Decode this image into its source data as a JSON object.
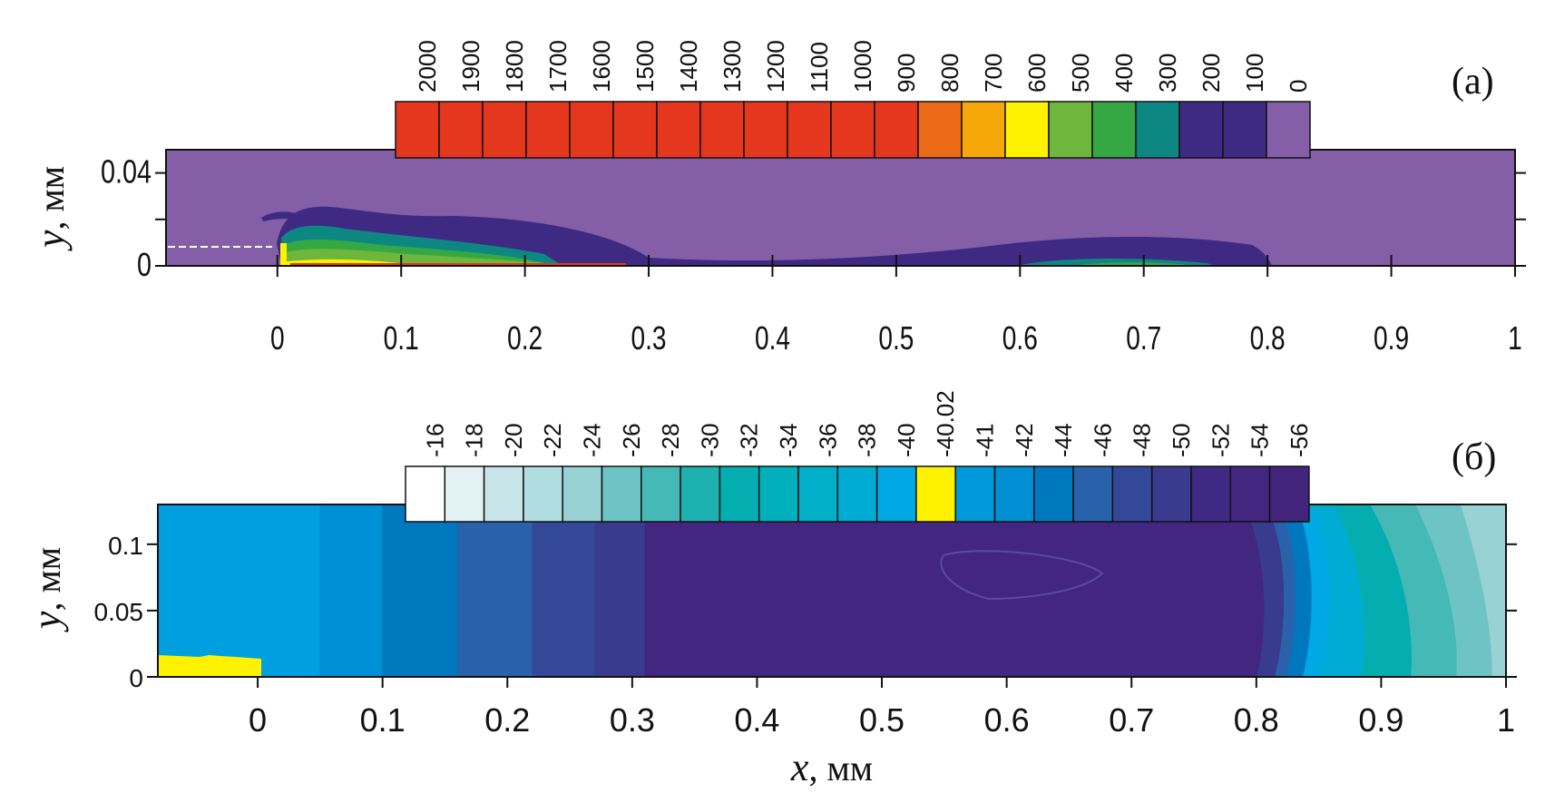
{
  "chart_data": [
    {
      "type": "heatmap",
      "panel_label": "(a)",
      "ylabel_var": "y",
      "ylabel_unit": ", мм",
      "x_ticks": [
        "0",
        "0.1",
        "0.2",
        "0.3",
        "0.4",
        "0.5",
        "0.6",
        "0.7",
        "0.8",
        "0.9",
        "1"
      ],
      "x_tick_values": [
        0,
        0.1,
        0.2,
        0.3,
        0.4,
        0.5,
        0.6,
        0.7,
        0.8,
        0.9,
        1
      ],
      "y_ticks": [
        "0",
        "0.04"
      ],
      "y_tick_values": [
        0,
        0.04
      ],
      "xlim": [
        -0.09,
        1
      ],
      "ylim": [
        0,
        0.05
      ],
      "legend": {
        "labels": [
          "2000",
          "1900",
          "1800",
          "1700",
          "1600",
          "1500",
          "1400",
          "1300",
          "1200",
          "1100",
          "1000",
          "900",
          "800",
          "700",
          "600",
          "500",
          "400",
          "300",
          "200",
          "100",
          "0"
        ],
        "colors": [
          "#e4371d",
          "#e4371d",
          "#e4371d",
          "#e4371d",
          "#e4371d",
          "#e4371d",
          "#e4371d",
          "#e4371d",
          "#e4371d",
          "#e4371d",
          "#e4371d",
          "#e4371d",
          "#ea6a17",
          "#f6a80b",
          "#fff200",
          "#6fb63c",
          "#36a843",
          "#0d8782",
          "#3f2a83",
          "#3f2a83",
          "#845ea6"
        ]
      },
      "background_color": "#845ea6"
    },
    {
      "type": "heatmap",
      "panel_label": "(б)",
      "ylabel_var": "y",
      "ylabel_unit": ", мм",
      "xlabel_var": "x",
      "xlabel_unit": ", мм",
      "x_ticks": [
        "0",
        "0.1",
        "0.2",
        "0.3",
        "0.4",
        "0.5",
        "0.6",
        "0.7",
        "0.8",
        "0.9",
        "1"
      ],
      "x_tick_values": [
        0,
        0.1,
        0.2,
        0.3,
        0.4,
        0.5,
        0.6,
        0.7,
        0.8,
        0.9,
        1
      ],
      "y_ticks": [
        "0",
        "0.05",
        "0.1"
      ],
      "y_tick_values": [
        0,
        0.05,
        0.1
      ],
      "xlim": [
        -0.08,
        1
      ],
      "ylim": [
        0,
        0.13
      ],
      "legend": {
        "labels": [
          "-16",
          "-18",
          "-20",
          "-22",
          "-24",
          "-26",
          "-28",
          "-30",
          "-32",
          "-34",
          "-36",
          "-38",
          "-40",
          "-40.02",
          "-41",
          "-42",
          "-44",
          "-46",
          "-48",
          "-50",
          "-52",
          "-54",
          "-56"
        ],
        "colors": [
          "#ffffff",
          "#e2f2f3",
          "#c8e6ea",
          "#afdde0",
          "#98d2d5",
          "#6ec4c4",
          "#45b9b6",
          "#1db2b0",
          "#04adb0",
          "#00b0bc",
          "#00b0c8",
          "#00acd4",
          "#00a8e4",
          "#fff200",
          "#0099da",
          "#008fd2",
          "#0078bf",
          "#2962ab",
          "#334899",
          "#393b8e",
          "#3f2a83",
          "#42267f",
          "#44257d"
        ]
      },
      "bands": [
        {
          "x_start": -0.08,
          "x_end": 0.05,
          "color": "#00a0e0"
        },
        {
          "x_start": 0.05,
          "x_end": 0.1,
          "color": "#0090d6"
        },
        {
          "x_start": 0.1,
          "x_end": 0.16,
          "color": "#0078bf"
        },
        {
          "x_start": 0.16,
          "x_end": 0.22,
          "color": "#2962ab"
        },
        {
          "x_start": 0.22,
          "x_end": 0.27,
          "color": "#334899"
        },
        {
          "x_start": 0.27,
          "x_end": 0.31,
          "color": "#393b8e"
        },
        {
          "x_start": 0.31,
          "x_end": 0.8,
          "color": "#42267f"
        }
      ]
    }
  ]
}
